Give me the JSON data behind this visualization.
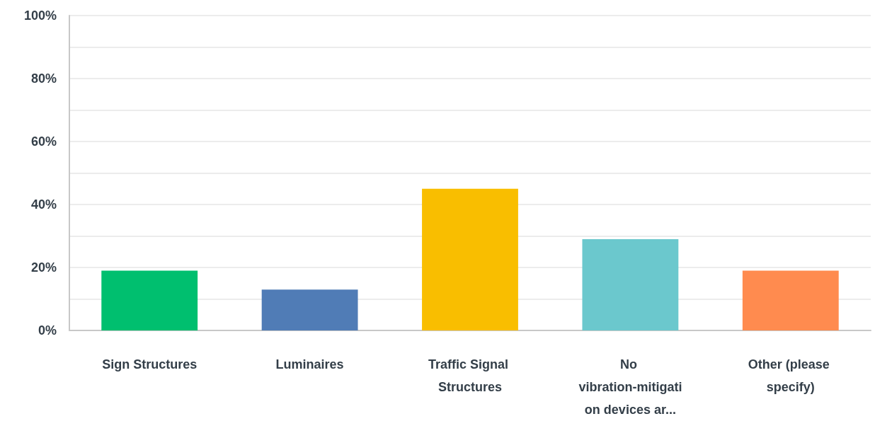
{
  "chart_data": {
    "type": "bar",
    "categories": [
      "Sign Structures",
      "Luminaires",
      "Traffic Signal Structures",
      "No vibration-mitigation devices ar...",
      "Other (please specify)"
    ],
    "values": [
      19,
      13,
      45,
      29,
      19
    ],
    "colors": [
      "#00bf6f",
      "#507cb6",
      "#f9be00",
      "#6bc8cd",
      "#ff8b4f"
    ],
    "ylim": [
      0,
      100
    ],
    "yticks": [
      {
        "value": 0,
        "label": "0%"
      },
      {
        "value": 10,
        "label": null
      },
      {
        "value": 20,
        "label": "20%"
      },
      {
        "value": 30,
        "label": null
      },
      {
        "value": 40,
        "label": "40%"
      },
      {
        "value": 50,
        "label": null
      },
      {
        "value": 60,
        "label": "60%"
      },
      {
        "value": 70,
        "label": null
      },
      {
        "value": 80,
        "label": "80%"
      },
      {
        "value": 90,
        "label": null
      },
      {
        "value": 100,
        "label": "100%"
      }
    ],
    "grid": "y"
  }
}
